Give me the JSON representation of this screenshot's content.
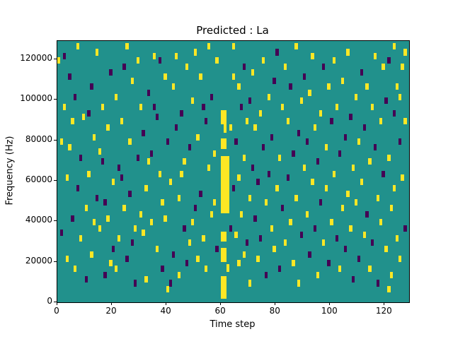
{
  "figure": {
    "title": "Predicted : La"
  },
  "chart_data": {
    "type": "heatmap",
    "title": "Predicted : La",
    "xlabel": "Time step",
    "ylabel": "Frequency (Hz)",
    "x_ticks": [
      0,
      20,
      40,
      60,
      80,
      100,
      120
    ],
    "y_ticks": [
      0,
      20000,
      40000,
      60000,
      80000,
      100000,
      120000
    ],
    "x_range": [
      0,
      129
    ],
    "y_range": [
      0,
      129
    ],
    "y_unit_hz_per_bin": 1000,
    "legend": "none",
    "grid": false,
    "colors": {
      "background": "#21918c",
      "low": "#440154",
      "high": "#fde725"
    },
    "cells": [
      [
        2,
        120,
        0
      ],
      [
        2,
        95,
        1
      ],
      [
        3,
        60,
        1
      ],
      [
        3,
        20,
        1
      ],
      [
        4,
        110,
        0
      ],
      [
        4,
        75,
        1
      ],
      [
        5,
        40,
        0
      ],
      [
        5,
        88,
        1
      ],
      [
        6,
        15,
        1
      ],
      [
        6,
        100,
        0
      ],
      [
        7,
        55,
        0
      ],
      [
        7,
        125,
        1
      ],
      [
        8,
        30,
        1
      ],
      [
        8,
        70,
        0
      ],
      [
        9,
        90,
        1
      ],
      [
        10,
        10,
        0
      ],
      [
        10,
        45,
        1
      ],
      [
        1,
        78,
        1
      ],
      [
        1,
        33,
        0
      ],
      [
        0,
        118,
        1
      ],
      [
        11,
        62,
        1
      ],
      [
        12,
        105,
        0
      ],
      [
        12,
        22,
        1
      ],
      [
        13,
        80,
        1
      ],
      [
        14,
        50,
        0
      ],
      [
        14,
        122,
        1
      ],
      [
        15,
        35,
        1
      ],
      [
        16,
        68,
        0
      ],
      [
        16,
        95,
        1
      ],
      [
        17,
        12,
        0
      ],
      [
        18,
        85,
        1
      ],
      [
        18,
        40,
        1
      ],
      [
        19,
        112,
        0
      ],
      [
        20,
        58,
        1
      ],
      [
        20,
        25,
        0
      ],
      [
        11,
        92,
        0
      ],
      [
        13,
        38,
        1
      ],
      [
        15,
        73,
        1
      ],
      [
        17,
        48,
        0
      ],
      [
        19,
        18,
        1
      ],
      [
        21,
        100,
        1
      ],
      [
        22,
        65,
        0
      ],
      [
        22,
        30,
        1
      ],
      [
        23,
        88,
        1
      ],
      [
        24,
        45,
        1
      ],
      [
        24,
        115,
        0
      ],
      [
        25,
        20,
        0
      ],
      [
        26,
        78,
        1
      ],
      [
        26,
        52,
        0
      ],
      [
        27,
        108,
        1
      ],
      [
        28,
        35,
        1
      ],
      [
        28,
        8,
        0
      ],
      [
        29,
        70,
        0
      ],
      [
        30,
        95,
        1
      ],
      [
        30,
        42,
        1
      ],
      [
        21,
        15,
        1
      ],
      [
        23,
        60,
        0
      ],
      [
        25,
        125,
        1
      ],
      [
        27,
        28,
        0
      ],
      [
        29,
        118,
        1
      ],
      [
        31,
        82,
        0
      ],
      [
        32,
        55,
        1
      ],
      [
        32,
        10,
        1
      ],
      [
        33,
        102,
        0
      ],
      [
        34,
        38,
        1
      ],
      [
        34,
        72,
        0
      ],
      [
        35,
        120,
        1
      ],
      [
        36,
        25,
        1
      ],
      [
        36,
        90,
        0
      ],
      [
        37,
        62,
        1
      ],
      [
        38,
        15,
        0
      ],
      [
        38,
        48,
        1
      ],
      [
        39,
        110,
        1
      ],
      [
        40,
        78,
        0
      ],
      [
        40,
        5,
        1
      ],
      [
        31,
        33,
        1
      ],
      [
        33,
        68,
        1
      ],
      [
        35,
        95,
        0
      ],
      [
        37,
        118,
        0
      ],
      [
        39,
        40,
        1
      ],
      [
        41,
        58,
        1
      ],
      [
        42,
        22,
        0
      ],
      [
        42,
        105,
        1
      ],
      [
        43,
        85,
        0
      ],
      [
        44,
        50,
        1
      ],
      [
        44,
        12,
        1
      ],
      [
        45,
        92,
        0
      ],
      [
        46,
        68,
        1
      ],
      [
        46,
        35,
        0
      ],
      [
        47,
        115,
        1
      ],
      [
        48,
        28,
        1
      ],
      [
        48,
        75,
        0
      ],
      [
        49,
        98,
        1
      ],
      [
        50,
        45,
        0
      ],
      [
        50,
        122,
        1
      ],
      [
        41,
        8,
        0
      ],
      [
        43,
        120,
        1
      ],
      [
        45,
        62,
        1
      ],
      [
        47,
        18,
        0
      ],
      [
        49,
        38,
        1
      ],
      [
        51,
        80,
        1
      ],
      [
        52,
        52,
        0
      ],
      [
        52,
        110,
        1
      ],
      [
        53,
        30,
        1
      ],
      [
        54,
        88,
        0
      ],
      [
        54,
        15,
        1
      ],
      [
        55,
        65,
        1
      ],
      [
        56,
        100,
        0
      ],
      [
        56,
        42,
        1
      ],
      [
        57,
        72,
        1
      ],
      [
        58,
        25,
        0
      ],
      [
        58,
        118,
        1
      ],
      [
        51,
        20,
        1
      ],
      [
        53,
        95,
        0
      ],
      [
        55,
        125,
        1
      ],
      [
        57,
        48,
        1
      ],
      [
        63,
        85,
        1
      ],
      [
        64,
        55,
        0
      ],
      [
        64,
        110,
        1
      ],
      [
        65,
        32,
        1
      ],
      [
        65,
        78,
        0
      ],
      [
        66,
        60,
        1
      ],
      [
        66,
        18,
        1
      ],
      [
        67,
        95,
        0
      ],
      [
        67,
        42,
        1
      ],
      [
        68,
        70,
        1
      ],
      [
        68,
        115,
        0
      ],
      [
        69,
        28,
        0
      ],
      [
        69,
        88,
        1
      ],
      [
        70,
        50,
        1
      ],
      [
        70,
        8,
        1
      ],
      [
        63,
        35,
        0
      ],
      [
        64,
        125,
        1
      ],
      [
        66,
        105,
        1
      ],
      [
        68,
        22,
        1
      ],
      [
        70,
        98,
        0
      ],
      [
        71,
        65,
        0
      ],
      [
        71,
        112,
        1
      ],
      [
        72,
        40,
        0
      ],
      [
        72,
        85,
        1
      ],
      [
        73,
        58,
        0
      ],
      [
        73,
        20,
        1
      ],
      [
        74,
        92,
        1
      ],
      [
        74,
        30,
        0
      ],
      [
        75,
        75,
        0
      ],
      [
        75,
        118,
        1
      ],
      [
        76,
        48,
        1
      ],
      [
        76,
        12,
        0
      ],
      [
        77,
        100,
        1
      ],
      [
        77,
        62,
        0
      ],
      [
        78,
        35,
        1
      ],
      [
        78,
        80,
        0
      ],
      [
        79,
        108,
        0
      ],
      [
        79,
        25,
        1
      ],
      [
        80,
        55,
        1
      ],
      [
        80,
        122,
        0
      ],
      [
        81,
        70,
        1
      ],
      [
        81,
        15,
        0
      ],
      [
        82,
        95,
        1
      ],
      [
        82,
        45,
        0
      ],
      [
        83,
        115,
        1
      ],
      [
        83,
        28,
        1
      ],
      [
        84,
        60,
        0
      ],
      [
        84,
        88,
        1
      ],
      [
        85,
        38,
        1
      ],
      [
        85,
        105,
        0
      ],
      [
        86,
        18,
        1
      ],
      [
        86,
        72,
        0
      ],
      [
        87,
        125,
        1
      ],
      [
        87,
        50,
        1
      ],
      [
        88,
        82,
        0
      ],
      [
        88,
        8,
        1
      ],
      [
        89,
        98,
        1
      ],
      [
        89,
        32,
        0
      ],
      [
        90,
        65,
        1
      ],
      [
        90,
        110,
        0
      ],
      [
        91,
        42,
        1
      ],
      [
        91,
        78,
        0
      ],
      [
        92,
        102,
        1
      ],
      [
        92,
        22,
        0
      ],
      [
        93,
        58,
        1
      ],
      [
        93,
        120,
        1
      ],
      [
        94,
        35,
        0
      ],
      [
        94,
        85,
        1
      ],
      [
        95,
        68,
        0
      ],
      [
        95,
        12,
        1
      ],
      [
        96,
        92,
        1
      ],
      [
        96,
        48,
        0
      ],
      [
        97,
        115,
        0
      ],
      [
        97,
        28,
        1
      ],
      [
        98,
        75,
        1
      ],
      [
        98,
        55,
        1
      ],
      [
        99,
        105,
        1
      ],
      [
        99,
        18,
        0
      ],
      [
        100,
        88,
        0
      ],
      [
        100,
        38,
        1
      ],
      [
        101,
        62,
        1
      ],
      [
        101,
        118,
        1
      ],
      [
        102,
        30,
        0
      ],
      [
        102,
        95,
        1
      ],
      [
        103,
        72,
        0
      ],
      [
        103,
        15,
        1
      ],
      [
        104,
        108,
        1
      ],
      [
        104,
        45,
        1
      ],
      [
        105,
        80,
        0
      ],
      [
        105,
        25,
        0
      ],
      [
        106,
        52,
        1
      ],
      [
        106,
        122,
        1
      ],
      [
        107,
        35,
        1
      ],
      [
        107,
        90,
        0
      ],
      [
        108,
        65,
        1
      ],
      [
        108,
        10,
        0
      ],
      [
        109,
        100,
        1
      ],
      [
        109,
        48,
        1
      ],
      [
        110,
        78,
        1
      ],
      [
        110,
        20,
        0
      ],
      [
        111,
        112,
        0
      ],
      [
        111,
        58,
        1
      ],
      [
        112,
        32,
        1
      ],
      [
        112,
        85,
        0
      ],
      [
        113,
        105,
        1
      ],
      [
        113,
        42,
        0
      ],
      [
        114,
        68,
        1
      ],
      [
        114,
        15,
        1
      ],
      [
        115,
        95,
        1
      ],
      [
        115,
        28,
        0
      ],
      [
        116,
        75,
        0
      ],
      [
        116,
        120,
        1
      ],
      [
        117,
        50,
        1
      ],
      [
        117,
        8,
        0
      ],
      [
        118,
        88,
        1
      ],
      [
        118,
        38,
        1
      ],
      [
        119,
        115,
        1
      ],
      [
        119,
        62,
        0
      ],
      [
        120,
        25,
        1
      ],
      [
        120,
        98,
        0
      ],
      [
        121,
        70,
        1
      ],
      [
        121,
        118,
        0
      ],
      [
        122,
        45,
        1
      ],
      [
        122,
        12,
        1
      ],
      [
        123,
        92,
        0
      ],
      [
        123,
        55,
        1
      ],
      [
        124,
        30,
        1
      ],
      [
        124,
        105,
        1
      ],
      [
        125,
        78,
        0
      ],
      [
        125,
        20,
        1
      ],
      [
        126,
        115,
        1
      ],
      [
        126,
        60,
        1
      ],
      [
        127,
        88,
        1
      ],
      [
        127,
        35,
        0
      ],
      [
        121,
        5,
        1
      ],
      [
        123,
        125,
        1
      ],
      [
        125,
        100,
        1
      ],
      [
        127,
        122,
        1
      ]
    ],
    "streaks": [
      {
        "x": 60,
        "w": 2,
        "c": 1,
        "ranges": [
          [
            2,
            13
          ],
          [
            20,
            27
          ],
          [
            30,
            35
          ],
          [
            76,
            81
          ],
          [
            88,
            95
          ]
        ]
      },
      {
        "x": 60,
        "w": 3,
        "c": 1,
        "ranges": [
          [
            44,
            72
          ]
        ]
      },
      {
        "x": 61,
        "w": 1,
        "c": 1,
        "ranges": [
          [
            4,
            11
          ],
          [
            84,
            90
          ]
        ]
      },
      {
        "x": 62,
        "w": 1,
        "c": 1,
        "ranges": [
          [
            15,
            19
          ]
        ]
      }
    ]
  }
}
